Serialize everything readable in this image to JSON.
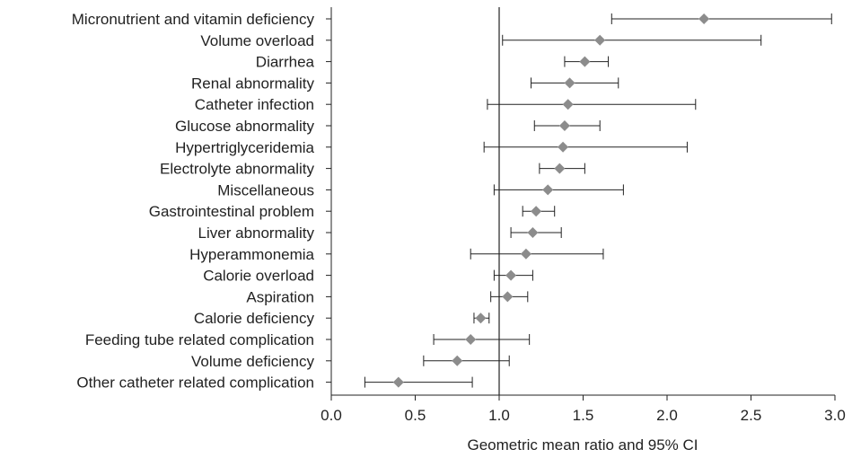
{
  "chart_data": {
    "type": "forest",
    "xlabel": "Geometric mean ratio and 95% CI",
    "xlim": [
      0.0,
      3.0
    ],
    "xticks": [
      "0.0",
      "0.5",
      "1.0",
      "1.5",
      "2.0",
      "2.5",
      "3.0"
    ],
    "reference_line": 1.0,
    "marker_color": "#8c8c8c",
    "line_color": "#222222",
    "rows": [
      {
        "label": "Micronutrient and vitamin deficiency",
        "estimate": 2.22,
        "lower": 1.67,
        "upper": 2.98
      },
      {
        "label": "Volume overload",
        "estimate": 1.6,
        "lower": 1.02,
        "upper": 2.56
      },
      {
        "label": "Diarrhea",
        "estimate": 1.51,
        "lower": 1.39,
        "upper": 1.65
      },
      {
        "label": "Renal abnormality",
        "estimate": 1.42,
        "lower": 1.19,
        "upper": 1.71
      },
      {
        "label": "Catheter infection",
        "estimate": 1.41,
        "lower": 0.93,
        "upper": 2.17
      },
      {
        "label": "Glucose abnormality",
        "estimate": 1.39,
        "lower": 1.21,
        "upper": 1.6
      },
      {
        "label": "Hypertriglyceridemia",
        "estimate": 1.38,
        "lower": 0.91,
        "upper": 2.12
      },
      {
        "label": "Electrolyte abnormality",
        "estimate": 1.36,
        "lower": 1.24,
        "upper": 1.51
      },
      {
        "label": "Miscellaneous",
        "estimate": 1.29,
        "lower": 0.97,
        "upper": 1.74
      },
      {
        "label": "Gastrointestinal problem",
        "estimate": 1.22,
        "lower": 1.14,
        "upper": 1.33
      },
      {
        "label": "Liver abnormality",
        "estimate": 1.2,
        "lower": 1.07,
        "upper": 1.37
      },
      {
        "label": "Hyperammonemia",
        "estimate": 1.16,
        "lower": 0.83,
        "upper": 1.62
      },
      {
        "label": "Calorie overload",
        "estimate": 1.07,
        "lower": 0.97,
        "upper": 1.2
      },
      {
        "label": "Aspiration",
        "estimate": 1.05,
        "lower": 0.95,
        "upper": 1.17
      },
      {
        "label": "Calorie deficiency",
        "estimate": 0.89,
        "lower": 0.85,
        "upper": 0.94
      },
      {
        "label": "Feeding tube related complication",
        "estimate": 0.83,
        "lower": 0.61,
        "upper": 1.18
      },
      {
        "label": "Volume deficiency",
        "estimate": 0.75,
        "lower": 0.55,
        "upper": 1.06
      },
      {
        "label": "Other catheter related complication",
        "estimate": 0.4,
        "lower": 0.2,
        "upper": 0.84
      }
    ]
  }
}
